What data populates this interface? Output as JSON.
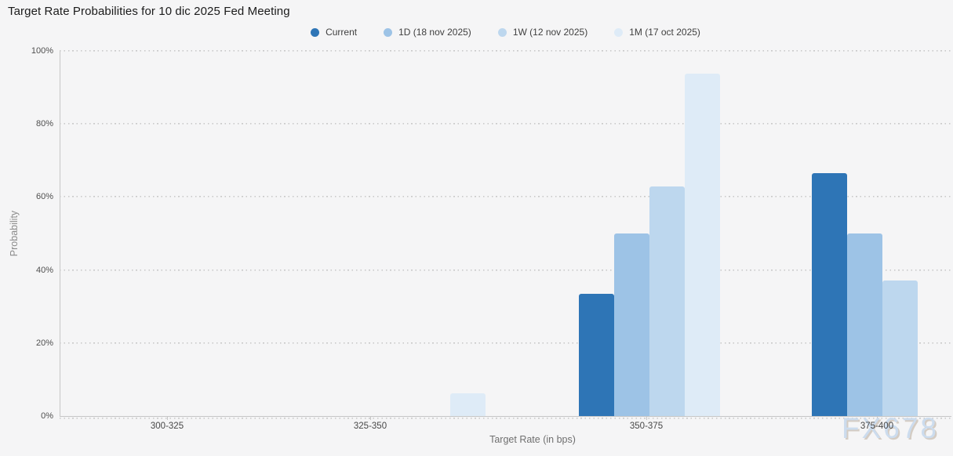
{
  "title": "Target Rate Probabilities for 10 dic 2025 Fed Meeting",
  "watermark": "FX678",
  "chart_data": {
    "type": "bar",
    "title": "Target Rate Probabilities for 10 dic 2025 Fed Meeting",
    "xlabel": "Target Rate (in bps)",
    "ylabel": "Probability",
    "categories": [
      "300-325",
      "325-350",
      "350-375",
      "375-400"
    ],
    "series": [
      {
        "name": "Current",
        "color": "#2e75b6",
        "values": [
          0,
          0,
          33.5,
          66.5
        ]
      },
      {
        "name": "1D (18 nov 2025)",
        "color": "#9dc3e6",
        "values": [
          0,
          0,
          50.1,
          49.9
        ]
      },
      {
        "name": "1W (12 nov 2025)",
        "color": "#bdd7ee",
        "values": [
          0,
          0,
          62.8,
          37.2
        ]
      },
      {
        "name": "1M (17 oct 2025)",
        "color": "#deebf7",
        "values": [
          0,
          6.3,
          93.7,
          0
        ]
      }
    ],
    "ylim": [
      0,
      100
    ],
    "yticks": [
      0,
      20,
      40,
      60,
      80,
      100
    ],
    "ytick_labels": [
      "0%",
      "20%",
      "40%",
      "60%",
      "80%",
      "100%"
    ],
    "legend_position": "top-center",
    "grid": "dotted-horizontal",
    "background_color": "#f5f5f6"
  }
}
